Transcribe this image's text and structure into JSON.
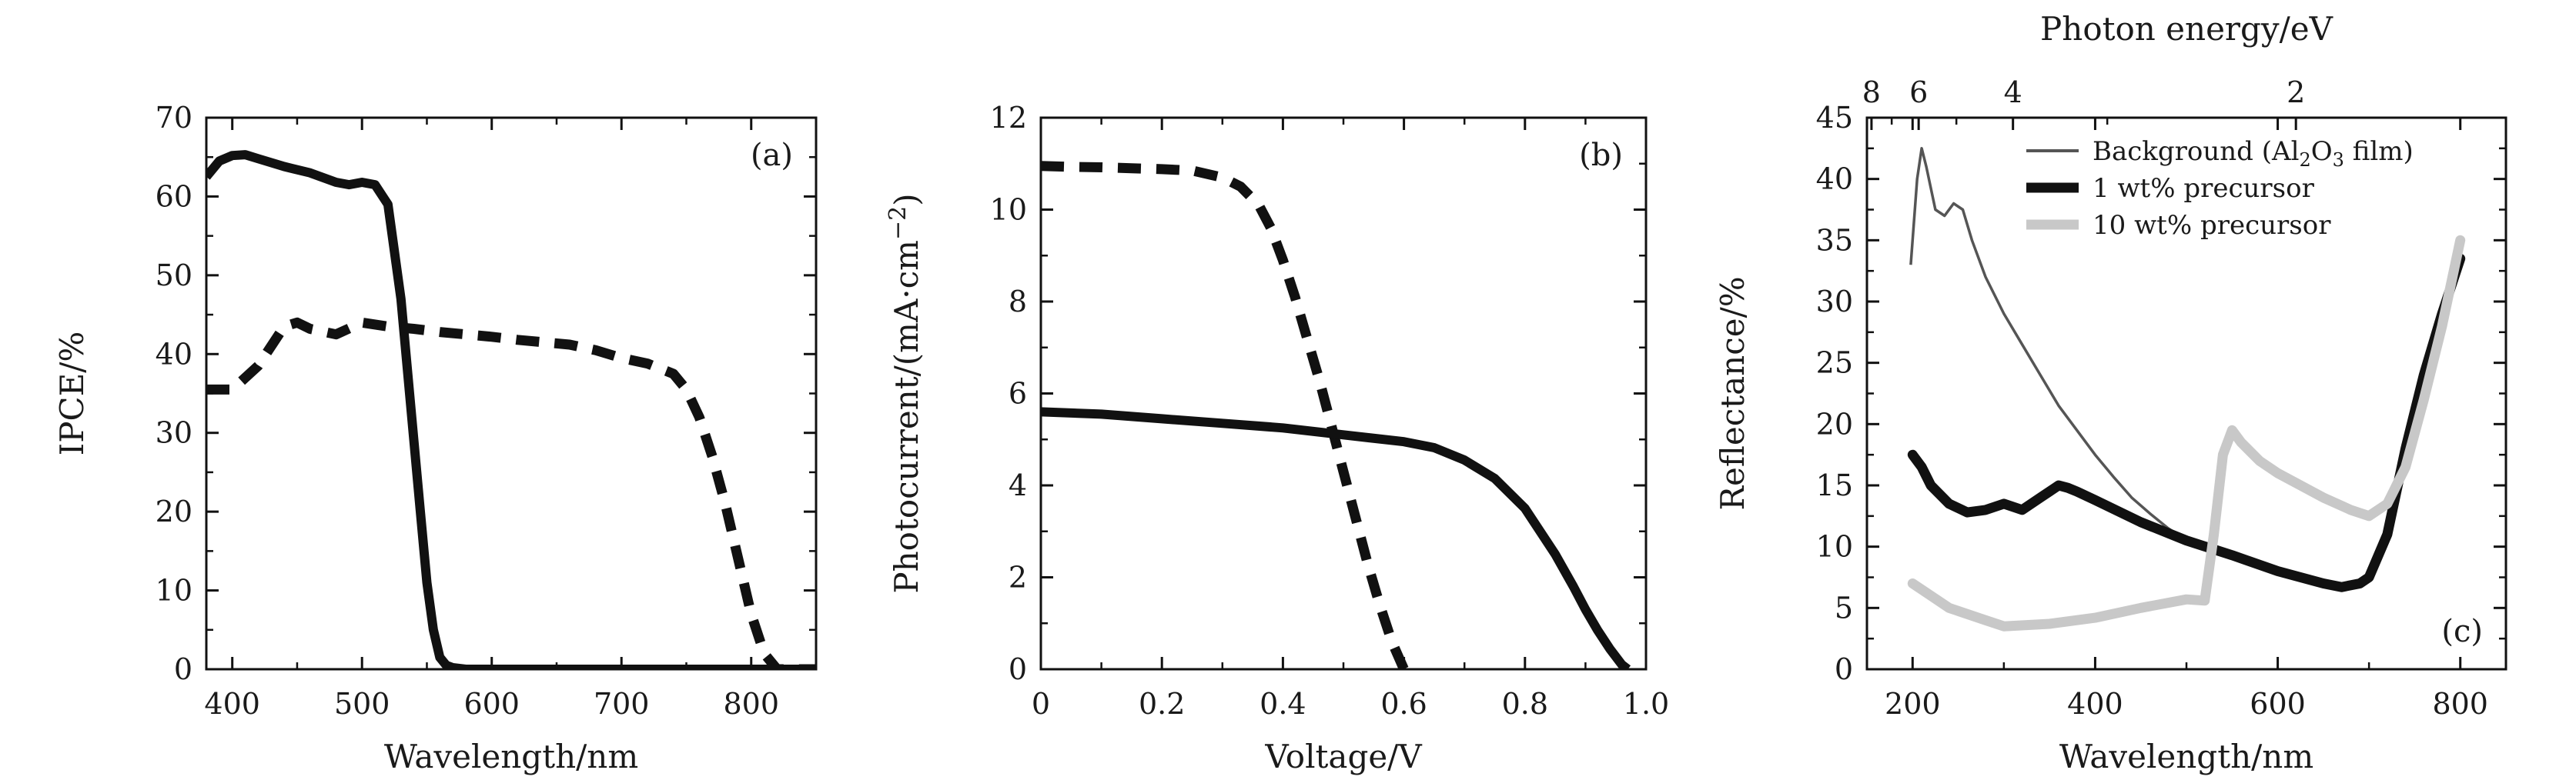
{
  "chart_data": [
    {
      "panel": "(a)",
      "type": "line",
      "xlabel": "Wavelength/nm",
      "ylabel": "IPCE/%",
      "xlim": [
        380,
        850
      ],
      "ylim": [
        0,
        70
      ],
      "xticks": [
        400,
        500,
        600,
        700,
        800
      ],
      "yticks": [
        0,
        10,
        20,
        30,
        40,
        50,
        60,
        70
      ],
      "series": [
        {
          "style": "solid",
          "x": [
            380,
            390,
            400,
            410,
            420,
            440,
            460,
            480,
            490,
            500,
            510,
            520,
            530,
            535,
            540,
            545,
            550,
            555,
            560,
            565,
            570,
            580,
            600,
            650,
            700,
            750,
            800,
            850
          ],
          "y": [
            62.5,
            64.5,
            65.2,
            65.3,
            64.8,
            63.8,
            63,
            61.8,
            61.5,
            61.8,
            61.5,
            59,
            47,
            38,
            29,
            20,
            11,
            5,
            1.5,
            0.5,
            0.2,
            0,
            0,
            0,
            0,
            0,
            0,
            0
          ]
        },
        {
          "style": "dashed",
          "x": [
            380,
            400,
            420,
            440,
            450,
            460,
            480,
            500,
            520,
            540,
            560,
            580,
            600,
            620,
            640,
            660,
            680,
            700,
            720,
            740,
            750,
            760,
            770,
            780,
            790,
            800,
            810,
            820,
            850
          ],
          "y": [
            35.5,
            35.5,
            38.5,
            43.5,
            44,
            43.2,
            42.5,
            44,
            43.5,
            43.2,
            42.8,
            42.5,
            42.2,
            41.8,
            41.5,
            41.2,
            40.5,
            39.5,
            38.8,
            37.5,
            35.5,
            32,
            27,
            21,
            14,
            7,
            2,
            0,
            0
          ]
        }
      ]
    },
    {
      "panel": "(b)",
      "type": "line",
      "xlabel": "Voltage/V",
      "ylabel": "Photocurrent/(mA·cm⁻²)",
      "xlim": [
        0,
        1.0
      ],
      "ylim": [
        0,
        12
      ],
      "xticks": [
        0,
        0.2,
        0.4,
        0.6,
        0.8,
        1.0
      ],
      "xtick_labels": [
        "0",
        "0.2",
        "0.4",
        "0.6",
        "0.8",
        "1.0"
      ],
      "yticks": [
        0,
        2,
        4,
        6,
        8,
        10,
        12
      ],
      "series": [
        {
          "style": "dashed",
          "x": [
            0,
            0.05,
            0.1,
            0.15,
            0.2,
            0.25,
            0.3,
            0.33,
            0.36,
            0.38,
            0.4,
            0.42,
            0.44,
            0.46,
            0.48,
            0.5,
            0.52,
            0.54,
            0.56,
            0.58,
            0.6
          ],
          "y": [
            10.95,
            10.93,
            10.92,
            10.9,
            10.88,
            10.85,
            10.7,
            10.5,
            10.1,
            9.6,
            8.9,
            8.1,
            7.2,
            6.3,
            5.3,
            4.3,
            3.3,
            2.3,
            1.4,
            0.6,
            0
          ]
        },
        {
          "style": "solid",
          "x": [
            0,
            0.1,
            0.2,
            0.3,
            0.4,
            0.5,
            0.6,
            0.65,
            0.7,
            0.75,
            0.8,
            0.85,
            0.88,
            0.9,
            0.92,
            0.94,
            0.96,
            0.97
          ],
          "y": [
            5.6,
            5.55,
            5.45,
            5.35,
            5.25,
            5.1,
            4.95,
            4.82,
            4.55,
            4.15,
            3.5,
            2.5,
            1.8,
            1.3,
            0.85,
            0.45,
            0.1,
            0
          ]
        }
      ]
    },
    {
      "panel": "(c)",
      "type": "line",
      "xlabel": "Wavelength/nm",
      "ylabel": "Reflectance/%",
      "top_xlabel": "Photon energy/eV",
      "xlim": [
        150,
        850
      ],
      "ylim": [
        0,
        45
      ],
      "xticks": [
        200,
        400,
        600,
        800
      ],
      "yticks": [
        0,
        5,
        10,
        15,
        20,
        25,
        30,
        35,
        40,
        45
      ],
      "top_ticks": [
        8,
        6,
        4,
        2
      ],
      "legend_position": "top-right",
      "series": [
        {
          "name": "Background (Al2O3 film)",
          "name_parts": [
            "Background (Al",
            "2",
            "O",
            "3",
            " film)"
          ],
          "color": "#555555",
          "style": "thin",
          "x": [
            198,
            205,
            210,
            215,
            225,
            235,
            245,
            255,
            265,
            280,
            300,
            320,
            340,
            360,
            380,
            400,
            420,
            440,
            460,
            480,
            500,
            520,
            540
          ],
          "y": [
            33,
            40,
            42.5,
            41,
            37.5,
            37,
            38,
            37.5,
            35,
            32,
            29,
            26.5,
            24,
            21.5,
            19.5,
            17.5,
            15.7,
            14,
            12.7,
            11.5,
            10.5,
            9.8,
            9.5
          ]
        },
        {
          "name": "1 wt% precursor",
          "color": "#111111",
          "style": "thick",
          "x": [
            200,
            210,
            220,
            240,
            260,
            280,
            300,
            320,
            340,
            360,
            370,
            380,
            400,
            450,
            500,
            550,
            600,
            650,
            670,
            690,
            700,
            720,
            740,
            760,
            780,
            800
          ],
          "y": [
            17.5,
            16.5,
            15,
            13.5,
            12.8,
            13,
            13.5,
            13,
            14,
            15,
            14.8,
            14.5,
            13.8,
            12,
            10.5,
            9.3,
            8,
            7,
            6.7,
            7,
            7.5,
            11,
            18,
            24,
            29,
            33.5
          ]
        },
        {
          "name": "10 wt% precursor",
          "color": "#c8c8c8",
          "style": "thick",
          "x": [
            200,
            220,
            240,
            260,
            280,
            300,
            350,
            400,
            450,
            500,
            520,
            530,
            540,
            550,
            560,
            580,
            600,
            650,
            680,
            700,
            720,
            740,
            760,
            780,
            800
          ],
          "y": [
            7,
            6,
            5,
            4.5,
            4,
            3.5,
            3.7,
            4.2,
            5,
            5.7,
            5.6,
            11,
            17.5,
            19.5,
            18.5,
            17,
            16,
            14,
            13,
            12.5,
            13.5,
            16.5,
            22,
            28,
            35
          ]
        }
      ]
    }
  ]
}
